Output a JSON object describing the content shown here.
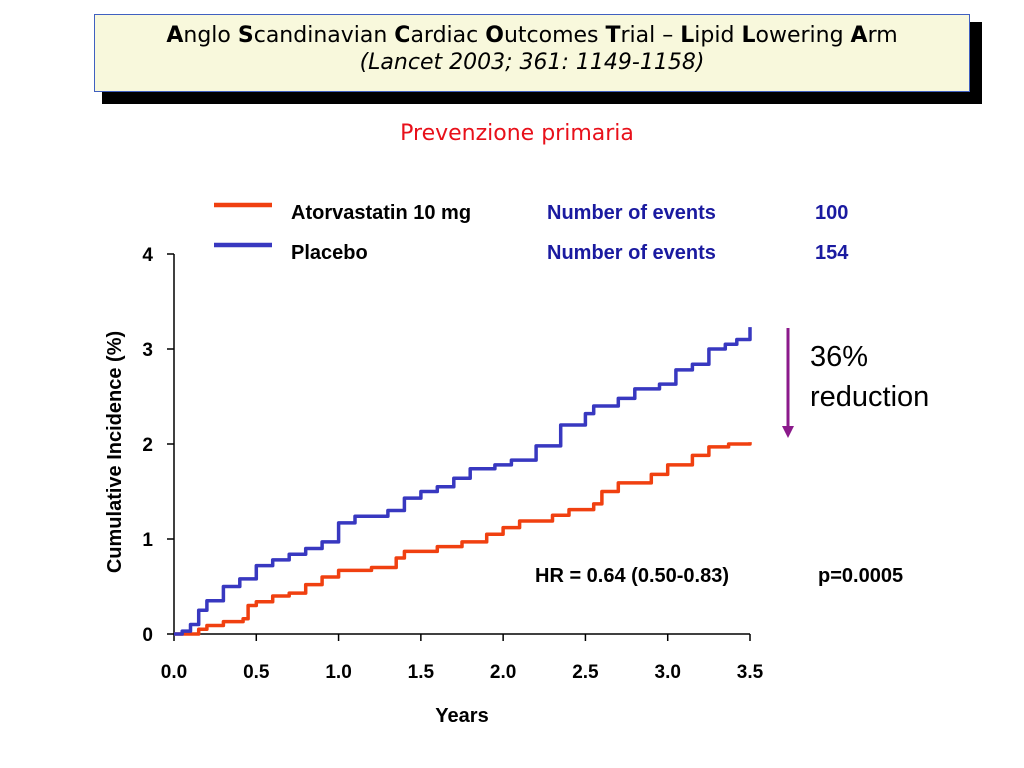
{
  "header": {
    "title_parts": [
      {
        "b": "A",
        "t": "nglo "
      },
      {
        "b": "S",
        "t": "candinavian "
      },
      {
        "b": "C",
        "t": "ardiac "
      },
      {
        "b": "O",
        "t": "utcomes "
      },
      {
        "b": "T",
        "t": "rial – "
      },
      {
        "b": "L",
        "t": "ipid "
      },
      {
        "b": "L",
        "t": "owering "
      },
      {
        "b": "A",
        "t": "rm"
      }
    ],
    "citation": "(Lancet 2003; 361: 1149-1158)",
    "subtitle": "Prevenzione primaria"
  },
  "annotation": {
    "reduction_line1": "36%",
    "reduction_line2": "reduction",
    "hr_text": "HR = 0.64 (0.50-0.83)",
    "p_text": "p=0.0005",
    "arrow_color": "#8b1a8b"
  },
  "chart_data": {
    "type": "line",
    "xlabel": "Years",
    "ylabel": "Cumulative Incidence (%)",
    "xlim": [
      0,
      3.5
    ],
    "ylim": [
      0,
      4
    ],
    "x_ticks": [
      "0.0",
      "0.5",
      "1.0",
      "1.5",
      "2.0",
      "2.5",
      "3.0",
      "3.5"
    ],
    "y_ticks": [
      "0",
      "1",
      "2",
      "3",
      "4"
    ],
    "grid": false,
    "legend_position": "top",
    "events_label": "Number of events",
    "series": [
      {
        "name": "Atorvastatin 10 mg",
        "events": "100",
        "color": "#f04010",
        "points": [
          [
            0,
            0
          ],
          [
            0.1,
            0.0
          ],
          [
            0.15,
            0.05
          ],
          [
            0.2,
            0.09
          ],
          [
            0.3,
            0.13
          ],
          [
            0.42,
            0.16
          ],
          [
            0.45,
            0.3
          ],
          [
            0.5,
            0.34
          ],
          [
            0.6,
            0.4
          ],
          [
            0.7,
            0.43
          ],
          [
            0.8,
            0.52
          ],
          [
            0.9,
            0.6
          ],
          [
            1.0,
            0.67
          ],
          [
            1.2,
            0.7
          ],
          [
            1.35,
            0.8
          ],
          [
            1.4,
            0.87
          ],
          [
            1.6,
            0.92
          ],
          [
            1.75,
            0.97
          ],
          [
            1.9,
            1.05
          ],
          [
            2.0,
            1.12
          ],
          [
            2.1,
            1.19
          ],
          [
            2.3,
            1.25
          ],
          [
            2.4,
            1.31
          ],
          [
            2.55,
            1.37
          ],
          [
            2.6,
            1.5
          ],
          [
            2.7,
            1.59
          ],
          [
            2.9,
            1.68
          ],
          [
            3.0,
            1.78
          ],
          [
            3.15,
            1.88
          ],
          [
            3.25,
            1.97
          ],
          [
            3.37,
            2.0
          ],
          [
            3.5,
            2.02
          ]
        ]
      },
      {
        "name": "Placebo",
        "events": "154",
        "color": "#3838c0",
        "points": [
          [
            0,
            0
          ],
          [
            0.05,
            0.03
          ],
          [
            0.1,
            0.1
          ],
          [
            0.15,
            0.25
          ],
          [
            0.2,
            0.35
          ],
          [
            0.3,
            0.5
          ],
          [
            0.4,
            0.58
          ],
          [
            0.5,
            0.72
          ],
          [
            0.6,
            0.78
          ],
          [
            0.7,
            0.84
          ],
          [
            0.8,
            0.9
          ],
          [
            0.9,
            0.97
          ],
          [
            1.0,
            1.17
          ],
          [
            1.1,
            1.24
          ],
          [
            1.3,
            1.3
          ],
          [
            1.4,
            1.43
          ],
          [
            1.5,
            1.5
          ],
          [
            1.6,
            1.55
          ],
          [
            1.7,
            1.64
          ],
          [
            1.8,
            1.74
          ],
          [
            1.95,
            1.78
          ],
          [
            2.05,
            1.83
          ],
          [
            2.2,
            1.98
          ],
          [
            2.35,
            2.2
          ],
          [
            2.5,
            2.32
          ],
          [
            2.55,
            2.4
          ],
          [
            2.7,
            2.48
          ],
          [
            2.8,
            2.58
          ],
          [
            2.95,
            2.63
          ],
          [
            3.05,
            2.78
          ],
          [
            3.15,
            2.84
          ],
          [
            3.25,
            3.0
          ],
          [
            3.35,
            3.05
          ],
          [
            3.42,
            3.1
          ],
          [
            3.5,
            3.23
          ]
        ]
      }
    ]
  }
}
